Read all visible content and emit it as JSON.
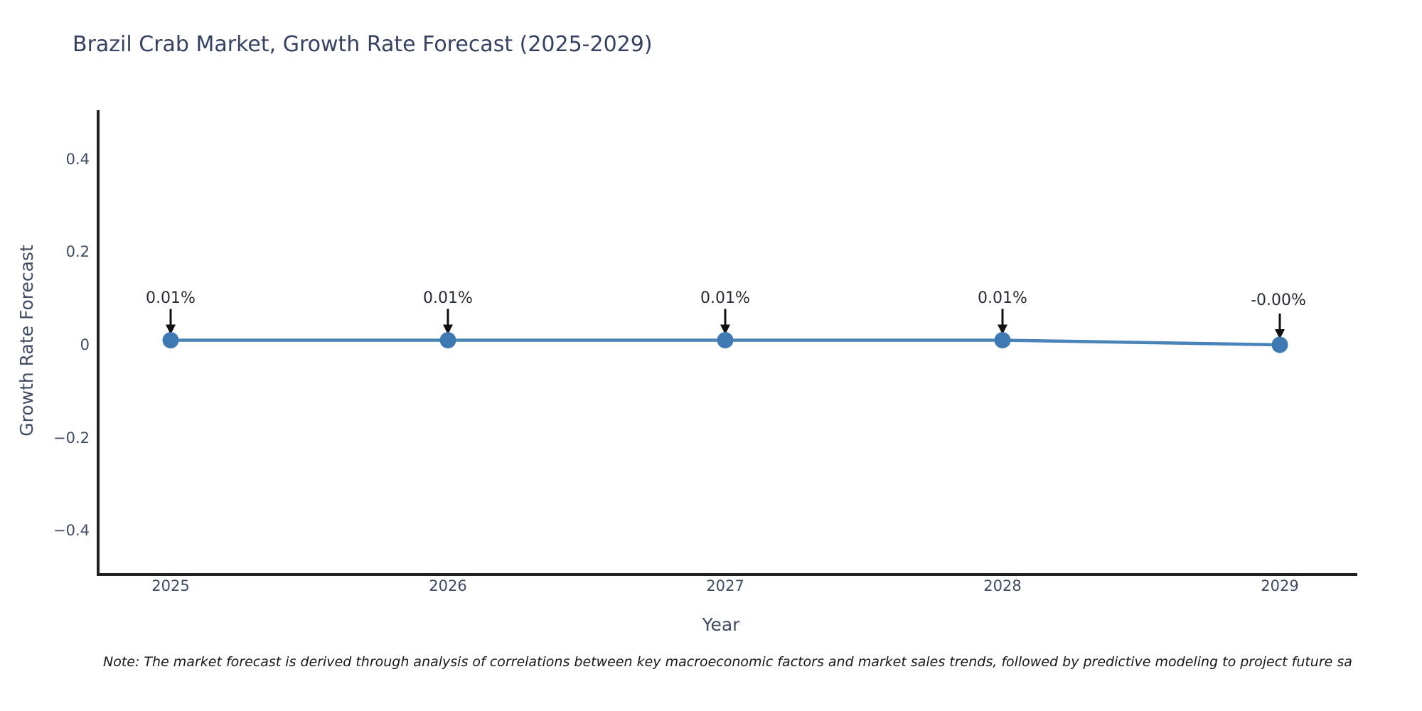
{
  "page": {
    "background": "#ffffff"
  },
  "chart_data": {
    "type": "line",
    "title": "Brazil Crab Market, Growth Rate Forecast (2025-2029)",
    "xlabel": "Year",
    "ylabel": "Growth Rate Forecast",
    "categories": [
      "2025",
      "2026",
      "2027",
      "2028",
      "2029"
    ],
    "series": [
      {
        "name": "Growth Rate Forecast",
        "values": [
          0.01,
          0.01,
          0.01,
          0.01,
          0.0
        ]
      }
    ],
    "point_labels": [
      "0.01%",
      "0.01%",
      "0.01%",
      "0.01%",
      "-0.00%"
    ],
    "y_tick_labels": [
      "0.4",
      "0.2",
      "0",
      "−0.2",
      "−0.4"
    ],
    "y_tick_values": [
      0.4,
      0.2,
      0,
      -0.2,
      -0.4
    ],
    "ylim": [
      -0.48,
      0.52
    ],
    "grid": false,
    "legend": false,
    "colors": {
      "line": "#4884b8",
      "marker": "#3e79b2",
      "axis": "#1f1f1f",
      "arrow": "#111111"
    }
  },
  "note": {
    "text": "Note: The market forecast is derived through analysis of correlations between key macroeconomic factors and market sales trends, followed by predictive modeling to project future sa"
  }
}
